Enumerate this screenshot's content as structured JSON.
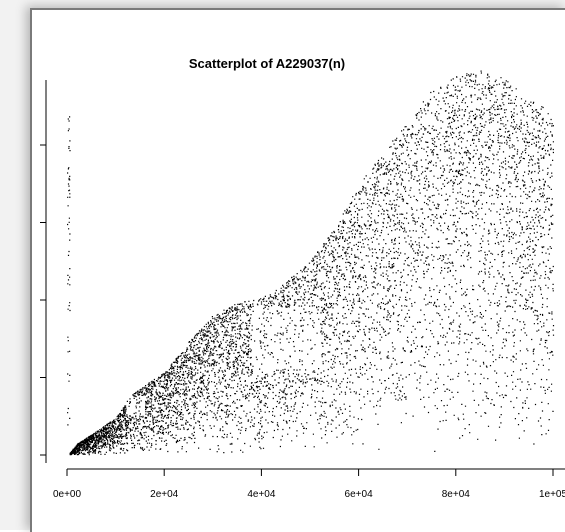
{
  "chart_data": {
    "type": "scatter",
    "title": "Scatterplot of A229037(n)",
    "xlabel": "",
    "ylabel": "",
    "xlim": [
      0,
      100000
    ],
    "ylim": [
      0,
      25000
    ],
    "x_ticks": [
      0,
      20000,
      40000,
      60000,
      80000,
      100000
    ],
    "x_tick_labels": [
      "0e+00",
      "2e+04",
      "4e+04",
      "6e+04",
      "8e+04",
      "1e+05"
    ],
    "y_ticks": [
      0,
      5000,
      10000,
      15000,
      20000
    ],
    "y_tick_labels": [],
    "grid": false,
    "marker_color": "#000000",
    "series": [
      {
        "description_points": [
          [
            500,
            100
          ],
          [
            2000,
            700
          ],
          [
            5000,
            1300
          ],
          [
            10000,
            2400
          ],
          [
            13000,
            3800
          ],
          [
            16000,
            4500
          ],
          [
            20000,
            5300
          ],
          [
            25000,
            7300
          ],
          [
            30000,
            9000
          ],
          [
            35000,
            9800
          ],
          [
            40000,
            10100
          ],
          [
            45000,
            11200
          ],
          [
            50000,
            12500
          ],
          [
            55000,
            14600
          ],
          [
            60000,
            17500
          ],
          [
            65000,
            19500
          ],
          [
            70000,
            21500
          ],
          [
            75000,
            23500
          ],
          [
            80000,
            24500
          ],
          [
            85000,
            24800
          ],
          [
            90000,
            24300
          ],
          [
            95000,
            23000
          ],
          [
            100000,
            22000
          ]
        ]
      }
    ]
  }
}
